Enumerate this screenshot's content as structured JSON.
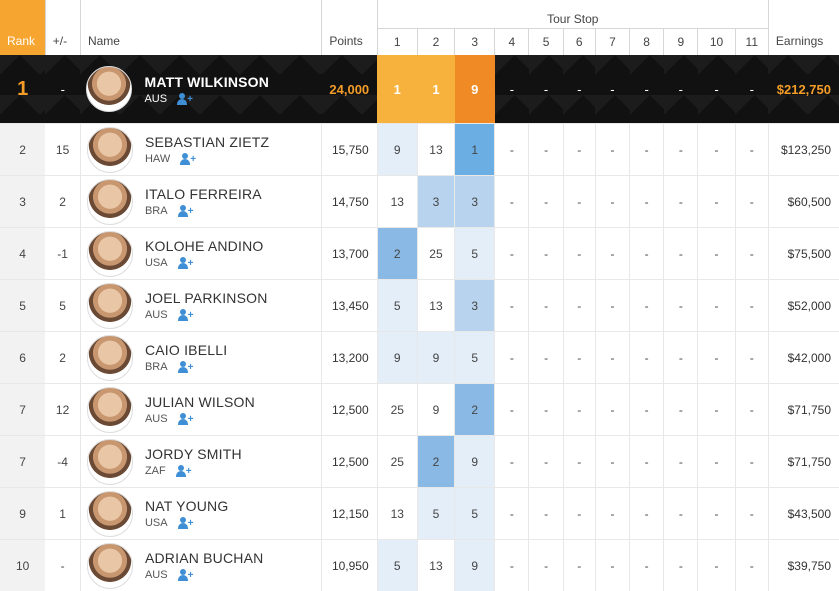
{
  "headers": {
    "rank": "Rank",
    "change": "+/-",
    "name": "Name",
    "points": "Points",
    "tour_stop": "Tour Stop",
    "earnings": "Earnings",
    "stops": [
      "1",
      "2",
      "3",
      "4",
      "5",
      "6",
      "7",
      "8",
      "9",
      "10",
      "11"
    ]
  },
  "colors": {
    "accent": "#f7a531",
    "leader_bg": "#111111",
    "positive": "#53b33b",
    "negative": "#c53a2f",
    "highlight_blue": "#8ab9e6"
  },
  "leader": {
    "rank": "1",
    "change": "-",
    "name": "MATT WILKINSON",
    "country": "AUS",
    "points": "24,000",
    "stops": [
      "1",
      "1",
      "9",
      "-",
      "-",
      "-",
      "-",
      "-",
      "-",
      "-",
      "-"
    ],
    "earnings": "$212,750"
  },
  "rows": [
    {
      "rank": "2",
      "change": "15",
      "trend": "up",
      "name": "SEBASTIAN ZIETZ",
      "country": "HAW",
      "points": "15,750",
      "stops": [
        "9",
        "13",
        "1",
        "-",
        "-",
        "-",
        "-",
        "-",
        "-",
        "-",
        "-"
      ],
      "shade": [
        "light",
        "",
        "top",
        "",
        "",
        "",
        "",
        "",
        "",
        "",
        ""
      ],
      "earnings": "$123,250"
    },
    {
      "rank": "3",
      "change": "2",
      "trend": "up",
      "name": "ITALO FERREIRA",
      "country": "BRA",
      "points": "14,750",
      "stops": [
        "13",
        "3",
        "3",
        "-",
        "-",
        "-",
        "-",
        "-",
        "-",
        "-",
        "-"
      ],
      "shade": [
        "",
        "mid",
        "mid",
        "",
        "",
        "",
        "",
        "",
        "",
        "",
        ""
      ],
      "earnings": "$60,500"
    },
    {
      "rank": "4",
      "change": "-1",
      "trend": "down",
      "name": "KOLOHE ANDINO",
      "country": "USA",
      "points": "13,700",
      "stops": [
        "2",
        "25",
        "5",
        "-",
        "-",
        "-",
        "-",
        "-",
        "-",
        "-",
        "-"
      ],
      "shade": [
        "strong",
        "",
        "light",
        "",
        "",
        "",
        "",
        "",
        "",
        "",
        ""
      ],
      "earnings": "$75,500"
    },
    {
      "rank": "5",
      "change": "5",
      "trend": "up",
      "name": "JOEL PARKINSON",
      "country": "AUS",
      "points": "13,450",
      "stops": [
        "5",
        "13",
        "3",
        "-",
        "-",
        "-",
        "-",
        "-",
        "-",
        "-",
        "-"
      ],
      "shade": [
        "light",
        "",
        "mid",
        "",
        "",
        "",
        "",
        "",
        "",
        "",
        ""
      ],
      "earnings": "$52,000"
    },
    {
      "rank": "6",
      "change": "2",
      "trend": "up",
      "name": "CAIO IBELLI",
      "country": "BRA",
      "points": "13,200",
      "stops": [
        "9",
        "9",
        "5",
        "-",
        "-",
        "-",
        "-",
        "-",
        "-",
        "-",
        "-"
      ],
      "shade": [
        "light",
        "light",
        "light",
        "",
        "",
        "",
        "",
        "",
        "",
        "",
        ""
      ],
      "earnings": "$42,000"
    },
    {
      "rank": "7",
      "change": "12",
      "trend": "up",
      "name": "JULIAN WILSON",
      "country": "AUS",
      "points": "12,500",
      "stops": [
        "25",
        "9",
        "2",
        "-",
        "-",
        "-",
        "-",
        "-",
        "-",
        "-",
        "-"
      ],
      "shade": [
        "",
        "",
        "strong",
        "",
        "",
        "",
        "",
        "",
        "",
        "",
        ""
      ],
      "earnings": "$71,750"
    },
    {
      "rank": "7",
      "change": "-4",
      "trend": "down",
      "name": "JORDY SMITH",
      "country": "ZAF",
      "points": "12,500",
      "stops": [
        "25",
        "2",
        "9",
        "-",
        "-",
        "-",
        "-",
        "-",
        "-",
        "-",
        "-"
      ],
      "shade": [
        "",
        "strong",
        "light",
        "",
        "",
        "",
        "",
        "",
        "",
        "",
        ""
      ],
      "earnings": "$71,750"
    },
    {
      "rank": "9",
      "change": "1",
      "trend": "up",
      "name": "NAT YOUNG",
      "country": "USA",
      "points": "12,150",
      "stops": [
        "13",
        "5",
        "5",
        "-",
        "-",
        "-",
        "-",
        "-",
        "-",
        "-",
        "-"
      ],
      "shade": [
        "",
        "light",
        "light",
        "",
        "",
        "",
        "",
        "",
        "",
        "",
        ""
      ],
      "earnings": "$43,500"
    },
    {
      "rank": "10",
      "change": "-",
      "trend": "none",
      "name": "ADRIAN BUCHAN",
      "country": "AUS",
      "points": "10,950",
      "stops": [
        "5",
        "13",
        "9",
        "-",
        "-",
        "-",
        "-",
        "-",
        "-",
        "-",
        "-"
      ],
      "shade": [
        "light",
        "",
        "light",
        "",
        "",
        "",
        "",
        "",
        "",
        "",
        ""
      ],
      "earnings": "$39,750"
    }
  ]
}
